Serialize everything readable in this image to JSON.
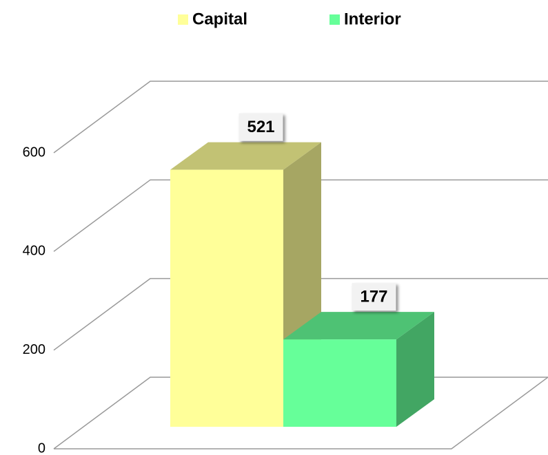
{
  "chart_data": {
    "type": "bar3d",
    "categories": [
      null
    ],
    "series": [
      {
        "name": "Capital",
        "color": "#ffff99",
        "values": [
          521
        ]
      },
      {
        "name": "Interior",
        "color": "#66ff99",
        "values": [
          177
        ]
      }
    ],
    "ylim": [
      0,
      600
    ],
    "yticks": [
      0,
      200,
      400,
      600
    ],
    "grid": true,
    "legend": "top"
  }
}
